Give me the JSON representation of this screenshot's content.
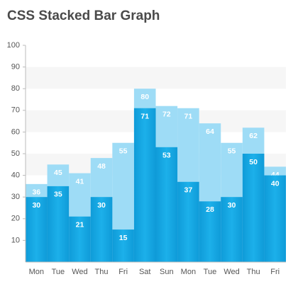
{
  "chart_data": {
    "type": "bar",
    "title": "CSS Stacked Bar Graph",
    "categories": [
      "Mon",
      "Tue",
      "Wed",
      "Thu",
      "Fri",
      "Sat",
      "Sun",
      "Mon",
      "Tue",
      "Wed",
      "Thu",
      "Fri"
    ],
    "series": [
      {
        "color": "#9edcf6",
        "values": [
          36,
          45,
          41,
          48,
          55,
          80,
          72,
          71,
          64,
          55,
          62,
          44
        ]
      },
      {
        "color": "#17a6e3",
        "values": [
          30,
          35,
          21,
          30,
          15,
          71,
          53,
          37,
          28,
          30,
          50,
          40
        ]
      }
    ],
    "ylim": [
      0,
      100
    ],
    "yticks": [
      10,
      20,
      30,
      40,
      50,
      60,
      70,
      80,
      90,
      100
    ],
    "grid": true
  }
}
